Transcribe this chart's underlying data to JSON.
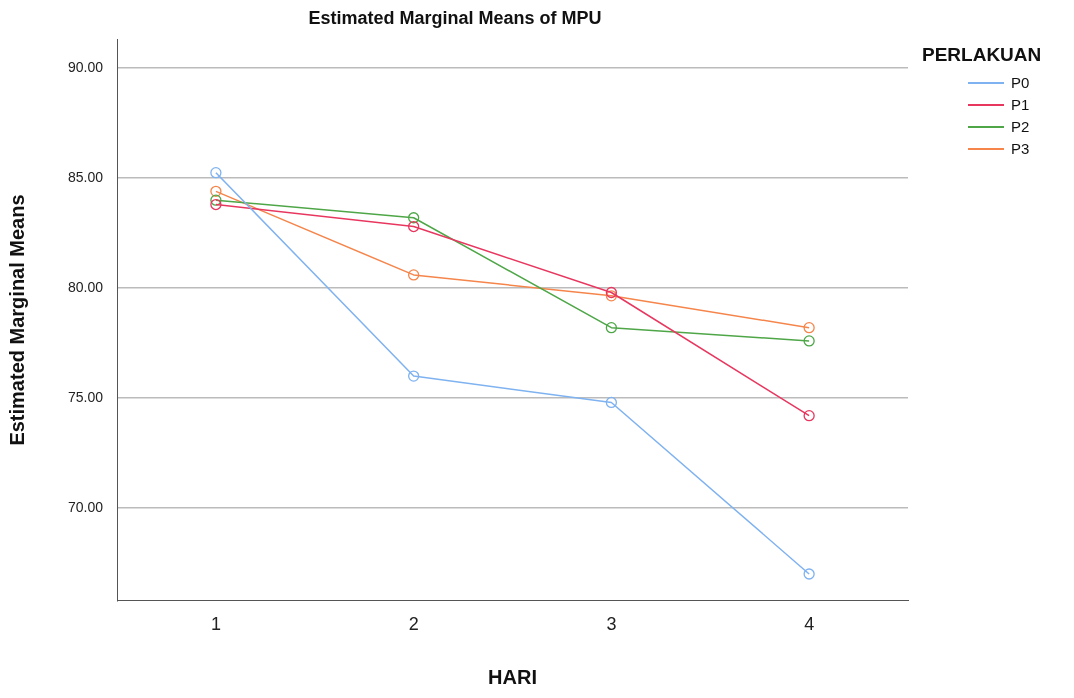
{
  "chart_data": {
    "type": "line",
    "title": "Estimated Marginal Means of MPU",
    "xlabel": "HARI",
    "ylabel": "Estimated Marginal Means",
    "legend_title": "PERLAKUAN",
    "categories": [
      "1",
      "2",
      "3",
      "4"
    ],
    "series": [
      {
        "name": "P0",
        "color": "#7fb2f0",
        "values": [
          85.25,
          76.0,
          74.8,
          67.0
        ]
      },
      {
        "name": "P1",
        "color": "#e8375f",
        "values": [
          83.8,
          82.8,
          79.8,
          74.2
        ]
      },
      {
        "name": "P2",
        "color": "#4ea647",
        "values": [
          84.0,
          83.2,
          78.2,
          77.6
        ]
      },
      {
        "name": "P3",
        "color": "#f5854b",
        "values": [
          84.4,
          80.6,
          79.65,
          78.2
        ]
      }
    ],
    "ylim": [
      65.8,
      91.3
    ],
    "yticks": [
      {
        "value": 70,
        "label": "70.00"
      },
      {
        "value": 75,
        "label": "75.00"
      },
      {
        "value": 80,
        "label": "80.00"
      },
      {
        "value": 85,
        "label": "85.00"
      },
      {
        "value": 90,
        "label": "90.00"
      }
    ],
    "grid": "y",
    "legend": "top right",
    "marker": "circle",
    "line_style": "solid"
  }
}
